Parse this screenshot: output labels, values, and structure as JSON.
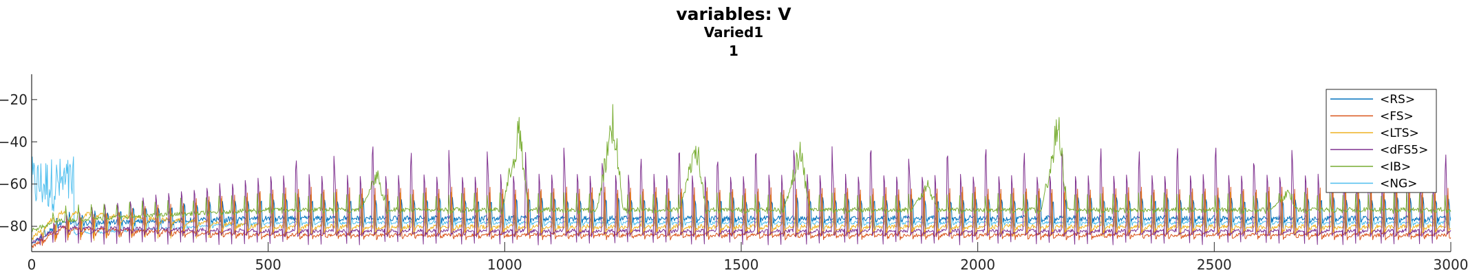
{
  "chart_data": {
    "type": "line",
    "title": "variables: V",
    "subtitle": "Varied1",
    "subtitle2": "1",
    "xlabel": "",
    "ylabel": "",
    "xlim": [
      0,
      3000
    ],
    "ylim": [
      -92,
      -8
    ],
    "xticks": [
      0,
      500,
      1000,
      1500,
      2000,
      2500,
      3000
    ],
    "yticks": [
      -20,
      -40,
      -60,
      -80
    ],
    "grid": false,
    "legend_position": "top-right",
    "series": [
      {
        "name": "<RS>",
        "color": "#0072BD",
        "baseline": -76,
        "spike_peak": -62,
        "spike_trough": -80,
        "period": 27,
        "phase": 3,
        "noise": 1.2,
        "start": -88,
        "early_level": -79
      },
      {
        "name": "<FS>",
        "color": "#D95319",
        "baseline": -84,
        "spike_peak": -60,
        "spike_trough": -89,
        "period": 27,
        "phase": 5,
        "noise": 0.8,
        "start": -90,
        "early_level": -80
      },
      {
        "name": "<LTS>",
        "color": "#EDB120",
        "baseline": -80,
        "spike_peak": -60,
        "spike_trough": -88,
        "period": 27,
        "phase": 7,
        "noise": 1.0,
        "start": -86,
        "early_level": -72
      },
      {
        "name": "<dFS5>",
        "color": "#7E2F8E",
        "baseline": -82,
        "spike_peak": -42,
        "spike_trough": -88,
        "period": 27,
        "phase": 9,
        "noise": 0.8,
        "start": -88,
        "early_level": -80
      },
      {
        "name": "<IB>",
        "color": "#77AC30",
        "baseline": -72,
        "spike_peak": -64,
        "spike_trough": -76,
        "period": 27,
        "phase": 11,
        "noise": 1.0,
        "start": -82,
        "early_level": -78,
        "bursts": [
          {
            "x": 730,
            "peak": -50
          },
          {
            "x": 1030,
            "peak": -24
          },
          {
            "x": 1230,
            "peak": -16
          },
          {
            "x": 1405,
            "peak": -32
          },
          {
            "x": 1625,
            "peak": -36
          },
          {
            "x": 1895,
            "peak": -58
          },
          {
            "x": 2170,
            "peak": -22
          },
          {
            "x": 2655,
            "peak": -62
          }
        ]
      },
      {
        "name": "<NG>",
        "color": "#4DBEEE",
        "baseline": -78,
        "spike_peak": -74,
        "spike_trough": -81,
        "period": 27,
        "phase": 0,
        "noise": 0.6,
        "start": -60,
        "early_level": -85
      }
    ]
  }
}
